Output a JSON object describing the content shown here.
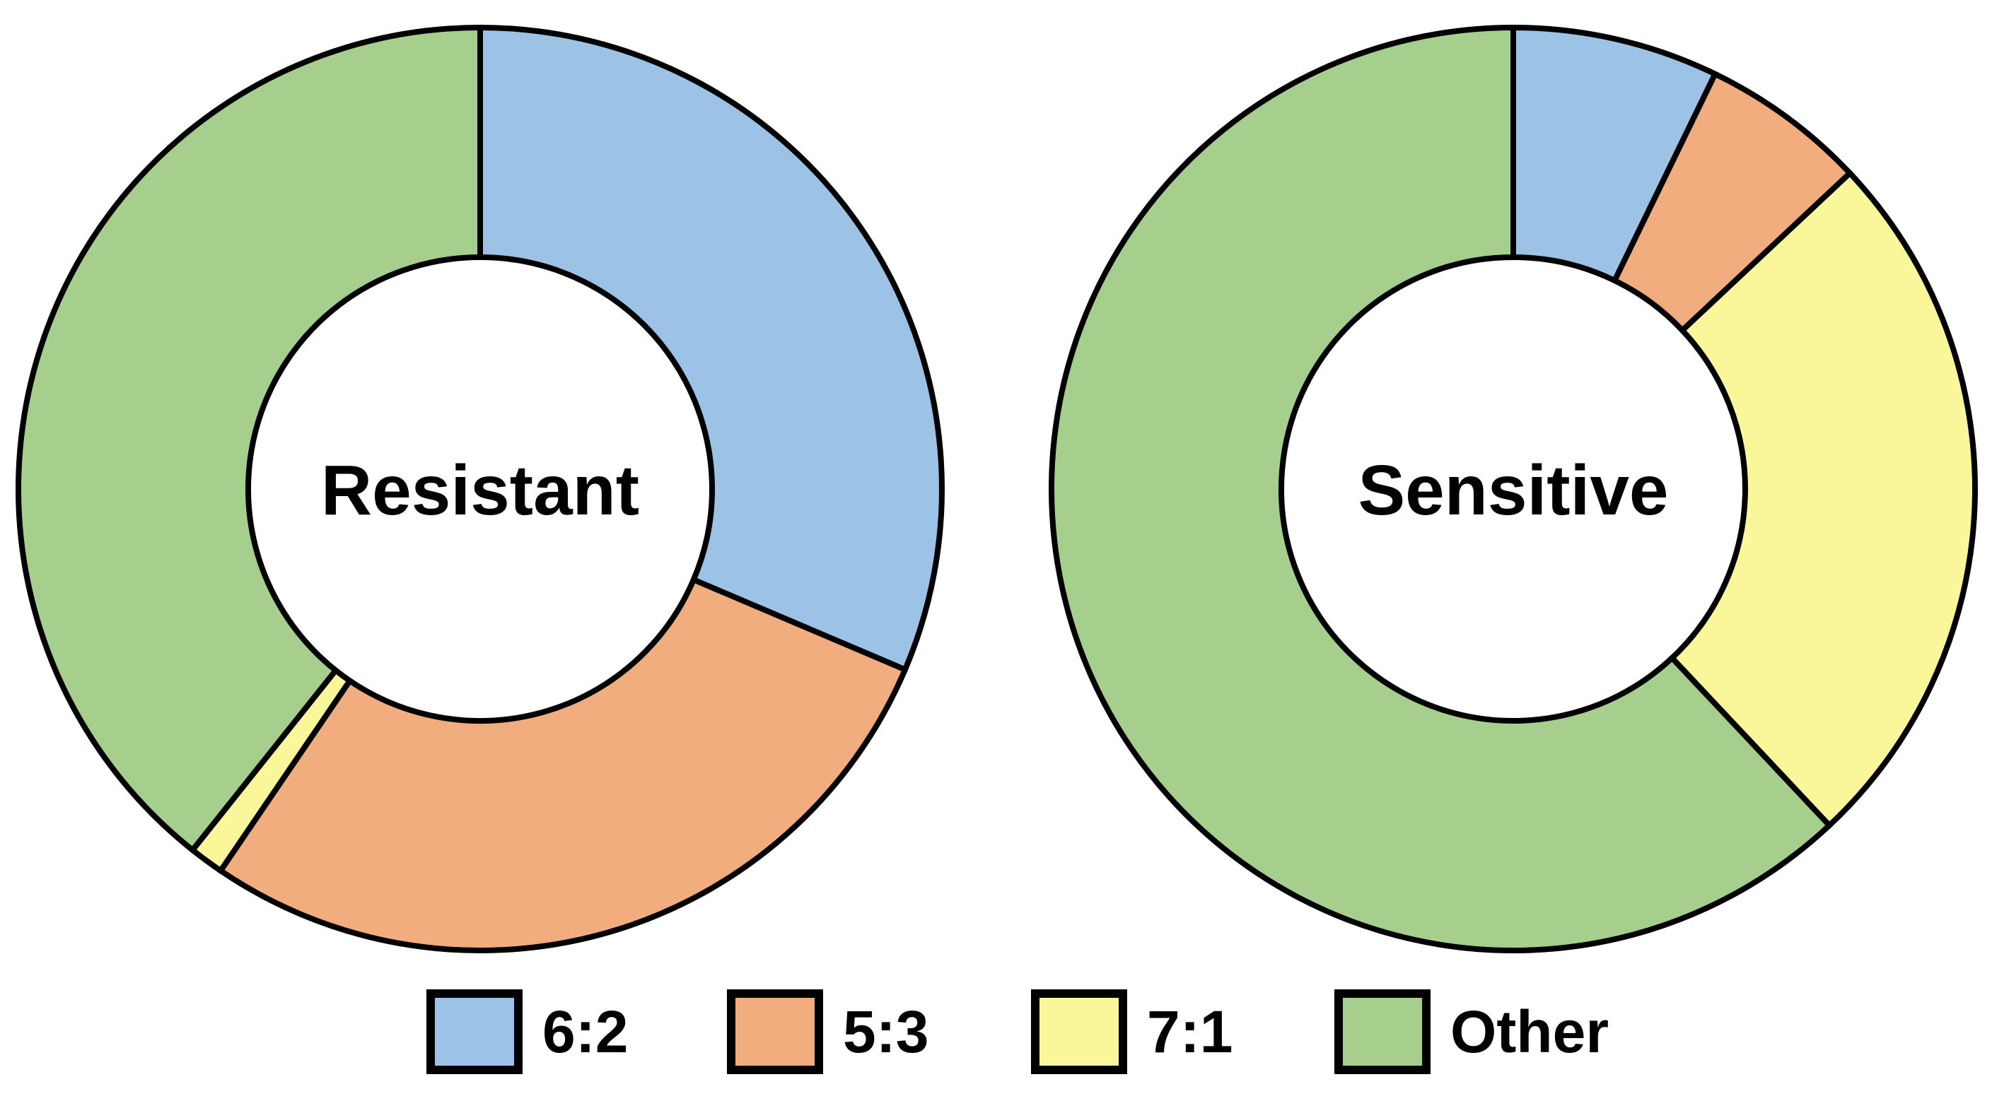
{
  "background": "#ffffff",
  "outline_color": "#000000",
  "chart_data": [
    {
      "type": "pie",
      "subtype": "donut",
      "center_label": "Resistant",
      "categories": [
        "6:2",
        "5:3",
        "7:1",
        "Other"
      ],
      "values": [
        31.4,
        28.1,
        1.2,
        39.3
      ],
      "values_unit": "percent (estimated from arc angles)",
      "colors": [
        "#9CC3E5",
        "#F2AD7E",
        "#FAF79B",
        "#A6CF8D"
      ],
      "start_angle": "12 o'clock",
      "direction": "clockwise",
      "donut_hole_ratio": 0.5,
      "outline_color": "#000000"
    },
    {
      "type": "pie",
      "subtype": "donut",
      "center_label": "Sensitive",
      "categories": [
        "6:2",
        "5:3",
        "7:1",
        "Other"
      ],
      "values": [
        7.2,
        5.8,
        25.0,
        62.0
      ],
      "values_unit": "percent (estimated from arc angles)",
      "colors": [
        "#9CC3E5",
        "#F2AD7E",
        "#FAF79B",
        "#A6CF8D"
      ],
      "start_angle": "12 o'clock",
      "direction": "clockwise",
      "donut_hole_ratio": 0.5,
      "outline_color": "#000000"
    }
  ],
  "legend": {
    "position": "bottom",
    "items": [
      {
        "label": "6:2",
        "color": "#9CC3E5"
      },
      {
        "label": "5:3",
        "color": "#F2AD7E"
      },
      {
        "label": "7:1",
        "color": "#FAF79B"
      },
      {
        "label": "Other",
        "color": "#A6CF8D"
      }
    ]
  }
}
